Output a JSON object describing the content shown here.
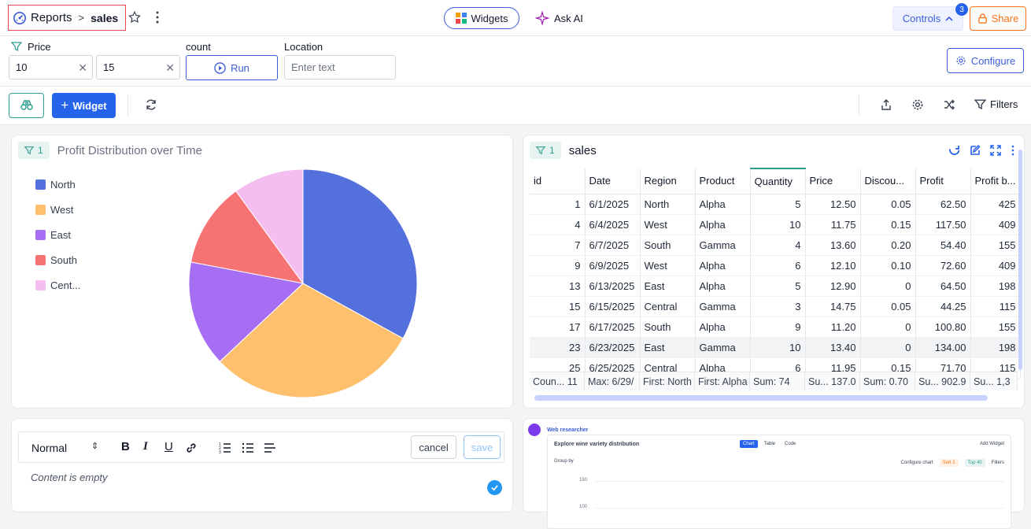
{
  "breadcrumb": {
    "root": "Reports",
    "current": "sales"
  },
  "header": {
    "widgets_label": "Widgets",
    "ask_ai_label": "Ask AI",
    "controls_label": "Controls",
    "controls_badge": "3",
    "share_label": "Share"
  },
  "filters": {
    "price_label": "Price",
    "price_min": "10",
    "price_max": "15",
    "count_label": "count",
    "run_label": "Run",
    "location_label": "Location",
    "location_placeholder": "Enter text",
    "configure_label": "Configure"
  },
  "toolbar": {
    "widget_label": "Widget",
    "filters_label": "Filters"
  },
  "pie_panel": {
    "filter_count": "1",
    "title": "Profit Distribution over Time",
    "chart_data": {
      "type": "pie",
      "title": "Profit Distribution over Time",
      "legend_placement": "left",
      "categories": [
        "North",
        "West",
        "East",
        "South",
        "Cent..."
      ],
      "values": [
        33,
        30,
        15,
        12,
        10
      ],
      "colors": [
        "#5470dc",
        "#fec06c",
        "#a66ef3",
        "#f77272",
        "#f4bef0"
      ]
    }
  },
  "sales_panel": {
    "filter_count": "1",
    "title": "sales",
    "columns": [
      "id",
      "Date",
      "Region",
      "Product",
      "Quantity",
      "Price",
      "Discou...",
      "Profit",
      "Profit b..."
    ],
    "rows": [
      [
        "1",
        "6/1/2025",
        "North",
        "Alpha",
        "5",
        "12.50",
        "0.05",
        "62.50",
        "425"
      ],
      [
        "4",
        "6/4/2025",
        "West",
        "Alpha",
        "10",
        "11.75",
        "0.15",
        "117.50",
        "409"
      ],
      [
        "7",
        "6/7/2025",
        "South",
        "Gamma",
        "4",
        "13.60",
        "0.20",
        "54.40",
        "155"
      ],
      [
        "9",
        "6/9/2025",
        "West",
        "Alpha",
        "6",
        "12.10",
        "0.10",
        "72.60",
        "409"
      ],
      [
        "13",
        "6/13/2025",
        "East",
        "Alpha",
        "5",
        "12.90",
        "0",
        "64.50",
        "198"
      ],
      [
        "15",
        "6/15/2025",
        "Central",
        "Gamma",
        "3",
        "14.75",
        "0.05",
        "44.25",
        "115"
      ],
      [
        "17",
        "6/17/2025",
        "South",
        "Alpha",
        "9",
        "11.20",
        "0",
        "100.80",
        "155"
      ],
      [
        "23",
        "6/23/2025",
        "East",
        "Gamma",
        "10",
        "13.40",
        "0",
        "134.00",
        "198"
      ],
      [
        "25",
        "6/25/2025",
        "Central",
        "Alpha",
        "6",
        "11.95",
        "0.15",
        "71.70",
        "115"
      ]
    ],
    "footer": [
      "Coun...  11",
      "Max: 6/29/",
      "First: North",
      "First: Alpha",
      "Sum: 74",
      "Su... 137.0",
      "Sum: 0.70",
      "Su... 902.9",
      "Su... 1,3"
    ]
  },
  "editor": {
    "format_select": "Normal",
    "cancel_label": "cancel",
    "save_label": "save",
    "empty_text": "Content is empty"
  },
  "web_researcher": {
    "title": "Web researcher",
    "preview_title": "Explore wine variety distribution",
    "tab_chart": "Chart",
    "tab_table": "Table",
    "tab_code": "Code",
    "add_widget": "Add Widget",
    "group_by": "Group by",
    "configure_chart": "Configure chart",
    "sort": "Sort",
    "sort_count": "1",
    "top": "Top",
    "top_count": "40",
    "filters": "Filters",
    "tick_150": "150",
    "tick_100": "100"
  }
}
